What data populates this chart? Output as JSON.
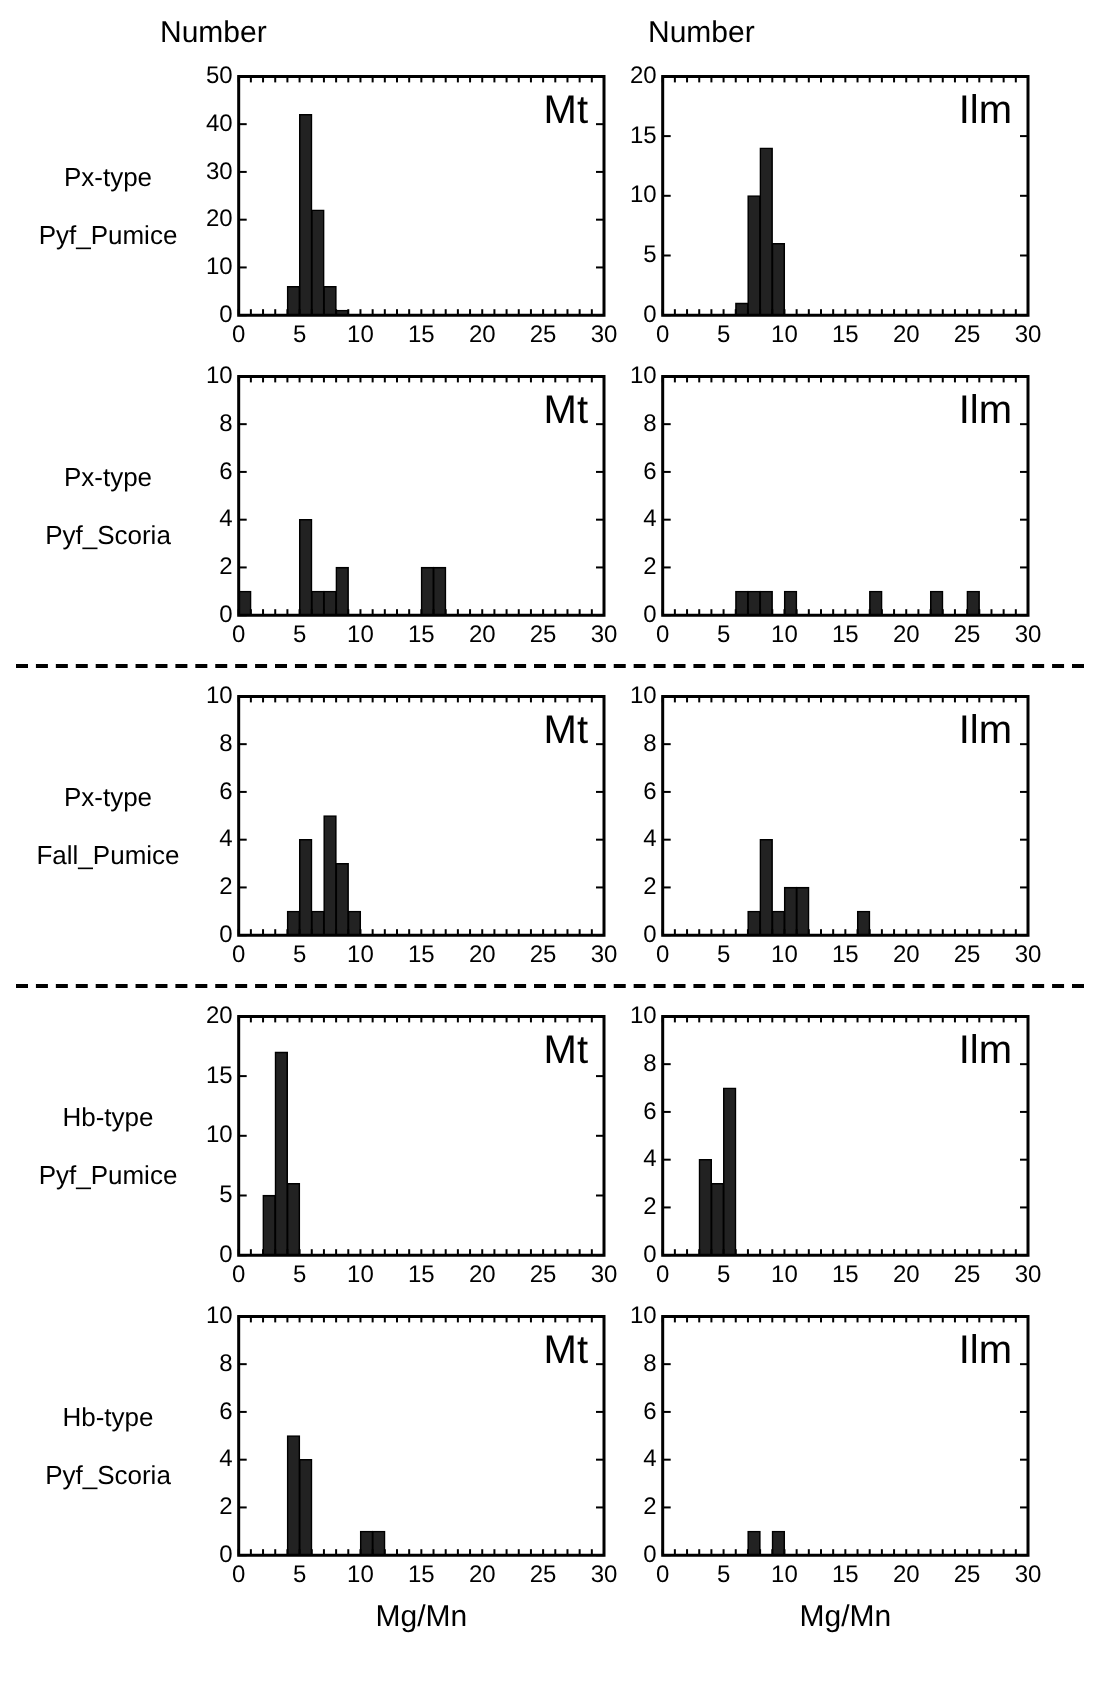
{
  "chart_data": [
    {
      "type": "histogram",
      "ylabel": "Number",
      "title": "Mt",
      "annotations": [
        "Px-type",
        "Pyf_Pumice"
      ],
      "bins": [
        0,
        1,
        2,
        3,
        4,
        5,
        6,
        7,
        8,
        9,
        10,
        11,
        12,
        13,
        14,
        15,
        16,
        17,
        18,
        19,
        20,
        21,
        22,
        23,
        24,
        25,
        26,
        27,
        28,
        29,
        30
      ],
      "values": [
        0,
        0,
        0,
        0,
        6,
        42,
        22,
        6,
        1,
        0,
        0,
        0,
        0,
        0,
        0,
        0,
        0,
        0,
        0,
        0,
        0,
        0,
        0,
        0,
        0,
        0,
        0,
        0,
        0,
        0
      ],
      "color": "#222222",
      "xlim": [
        0,
        30
      ],
      "xticks": [
        0,
        5,
        10,
        15,
        20,
        25,
        30
      ],
      "ylim": [
        0,
        50
      ],
      "yticks": [
        0,
        10,
        20,
        30,
        40,
        50
      ],
      "grid": false
    },
    {
      "type": "histogram",
      "ylabel": "Number",
      "title": "Ilm",
      "bins": [
        0,
        1,
        2,
        3,
        4,
        5,
        6,
        7,
        8,
        9,
        10,
        11,
        12,
        13,
        14,
        15,
        16,
        17,
        18,
        19,
        20,
        21,
        22,
        23,
        24,
        25,
        26,
        27,
        28,
        29,
        30
      ],
      "values": [
        0,
        0,
        0,
        0,
        0,
        0,
        1,
        10,
        14,
        6,
        0,
        0,
        0,
        0,
        0,
        0,
        0,
        0,
        0,
        0,
        0,
        0,
        0,
        0,
        0,
        0,
        0,
        0,
        0,
        0
      ],
      "color": "#222222",
      "xlim": [
        0,
        30
      ],
      "xticks": [
        0,
        5,
        10,
        15,
        20,
        25,
        30
      ],
      "ylim": [
        0,
        20
      ],
      "yticks": [
        0,
        5,
        10,
        15,
        20
      ],
      "grid": false
    },
    {
      "type": "histogram",
      "title": "Mt",
      "annotations": [
        "Px-type",
        "Pyf_Scoria"
      ],
      "bins": [
        0,
        1,
        2,
        3,
        4,
        5,
        6,
        7,
        8,
        9,
        10,
        11,
        12,
        13,
        14,
        15,
        16,
        17,
        18,
        19,
        20,
        21,
        22,
        23,
        24,
        25,
        26,
        27,
        28,
        29,
        30
      ],
      "values": [
        1,
        0,
        0,
        0,
        0,
        4,
        1,
        1,
        2,
        0,
        0,
        0,
        0,
        0,
        0,
        2,
        2,
        0,
        0,
        0,
        0,
        0,
        0,
        0,
        0,
        0,
        0,
        0,
        0,
        0
      ],
      "color": "#222222",
      "xlim": [
        0,
        30
      ],
      "xticks": [
        0,
        5,
        10,
        15,
        20,
        25,
        30
      ],
      "ylim": [
        0,
        10
      ],
      "yticks": [
        0,
        2,
        4,
        6,
        8,
        10
      ],
      "grid": false
    },
    {
      "type": "histogram",
      "title": "Ilm",
      "bins": [
        0,
        1,
        2,
        3,
        4,
        5,
        6,
        7,
        8,
        9,
        10,
        11,
        12,
        13,
        14,
        15,
        16,
        17,
        18,
        19,
        20,
        21,
        22,
        23,
        24,
        25,
        26,
        27,
        28,
        29,
        30
      ],
      "values": [
        0,
        0,
        0,
        0,
        0,
        0,
        1,
        1,
        1,
        0,
        1,
        0,
        0,
        0,
        0,
        0,
        0,
        1,
        0,
        0,
        0,
        0,
        1,
        0,
        0,
        1,
        0,
        0,
        0,
        0
      ],
      "color": "#222222",
      "xlim": [
        0,
        30
      ],
      "xticks": [
        0,
        5,
        10,
        15,
        20,
        25,
        30
      ],
      "ylim": [
        0,
        10
      ],
      "yticks": [
        0,
        2,
        4,
        6,
        8,
        10
      ],
      "grid": false
    },
    {
      "type": "histogram",
      "title": "Mt",
      "annotations": [
        "Px-type",
        "Fall_Pumice"
      ],
      "bins": [
        0,
        1,
        2,
        3,
        4,
        5,
        6,
        7,
        8,
        9,
        10,
        11,
        12,
        13,
        14,
        15,
        16,
        17,
        18,
        19,
        20,
        21,
        22,
        23,
        24,
        25,
        26,
        27,
        28,
        29,
        30
      ],
      "values": [
        0,
        0,
        0,
        0,
        1,
        4,
        1,
        5,
        3,
        1,
        0,
        0,
        0,
        0,
        0,
        0,
        0,
        0,
        0,
        0,
        0,
        0,
        0,
        0,
        0,
        0,
        0,
        0,
        0,
        0
      ],
      "color": "#222222",
      "xlim": [
        0,
        30
      ],
      "xticks": [
        0,
        5,
        10,
        15,
        20,
        25,
        30
      ],
      "ylim": [
        0,
        10
      ],
      "yticks": [
        0,
        2,
        4,
        6,
        8,
        10
      ],
      "grid": false
    },
    {
      "type": "histogram",
      "title": "Ilm",
      "bins": [
        0,
        1,
        2,
        3,
        4,
        5,
        6,
        7,
        8,
        9,
        10,
        11,
        12,
        13,
        14,
        15,
        16,
        17,
        18,
        19,
        20,
        21,
        22,
        23,
        24,
        25,
        26,
        27,
        28,
        29,
        30
      ],
      "values": [
        0,
        0,
        0,
        0,
        0,
        0,
        0,
        1,
        4,
        1,
        2,
        2,
        0,
        0,
        0,
        0,
        1,
        0,
        0,
        0,
        0,
        0,
        0,
        0,
        0,
        0,
        0,
        0,
        0,
        0
      ],
      "color": "#222222",
      "xlim": [
        0,
        30
      ],
      "xticks": [
        0,
        5,
        10,
        15,
        20,
        25,
        30
      ],
      "ylim": [
        0,
        10
      ],
      "yticks": [
        0,
        2,
        4,
        6,
        8,
        10
      ],
      "grid": false
    },
    {
      "type": "histogram",
      "title": "Mt",
      "annotations": [
        "Hb-type",
        "Pyf_Pumice"
      ],
      "bins": [
        0,
        1,
        2,
        3,
        4,
        5,
        6,
        7,
        8,
        9,
        10,
        11,
        12,
        13,
        14,
        15,
        16,
        17,
        18,
        19,
        20,
        21,
        22,
        23,
        24,
        25,
        26,
        27,
        28,
        29,
        30
      ],
      "values": [
        0,
        0,
        5,
        17,
        6,
        0,
        0,
        0,
        0,
        0,
        0,
        0,
        0,
        0,
        0,
        0,
        0,
        0,
        0,
        0,
        0,
        0,
        0,
        0,
        0,
        0,
        0,
        0,
        0,
        0
      ],
      "color": "#222222",
      "xlim": [
        0,
        30
      ],
      "xticks": [
        0,
        5,
        10,
        15,
        20,
        25,
        30
      ],
      "ylim": [
        0,
        20
      ],
      "yticks": [
        0,
        5,
        10,
        15,
        20
      ],
      "grid": false
    },
    {
      "type": "histogram",
      "title": "Ilm",
      "bins": [
        0,
        1,
        2,
        3,
        4,
        5,
        6,
        7,
        8,
        9,
        10,
        11,
        12,
        13,
        14,
        15,
        16,
        17,
        18,
        19,
        20,
        21,
        22,
        23,
        24,
        25,
        26,
        27,
        28,
        29,
        30
      ],
      "values": [
        0,
        0,
        0,
        4,
        3,
        7,
        0,
        0,
        0,
        0,
        0,
        0,
        0,
        0,
        0,
        0,
        0,
        0,
        0,
        0,
        0,
        0,
        0,
        0,
        0,
        0,
        0,
        0,
        0,
        0
      ],
      "color": "#222222",
      "xlim": [
        0,
        30
      ],
      "xticks": [
        0,
        5,
        10,
        15,
        20,
        25,
        30
      ],
      "ylim": [
        0,
        10
      ],
      "yticks": [
        0,
        2,
        4,
        6,
        8,
        10
      ],
      "grid": false
    },
    {
      "type": "histogram",
      "title": "Mt",
      "xlabel": "Mg/Mn",
      "annotations": [
        "Hb-type",
        "Pyf_Scoria"
      ],
      "bins": [
        0,
        1,
        2,
        3,
        4,
        5,
        6,
        7,
        8,
        9,
        10,
        11,
        12,
        13,
        14,
        15,
        16,
        17,
        18,
        19,
        20,
        21,
        22,
        23,
        24,
        25,
        26,
        27,
        28,
        29,
        30
      ],
      "values": [
        0,
        0,
        0,
        0,
        5,
        4,
        0,
        0,
        0,
        0,
        1,
        1,
        0,
        0,
        0,
        0,
        0,
        0,
        0,
        0,
        0,
        0,
        0,
        0,
        0,
        0,
        0,
        0,
        0,
        0
      ],
      "color": "#222222",
      "xlim": [
        0,
        30
      ],
      "xticks": [
        0,
        5,
        10,
        15,
        20,
        25,
        30
      ],
      "ylim": [
        0,
        10
      ],
      "yticks": [
        0,
        2,
        4,
        6,
        8,
        10
      ],
      "grid": false
    },
    {
      "type": "histogram",
      "title": "Ilm",
      "xlabel": "Mg/Mn",
      "bins": [
        0,
        1,
        2,
        3,
        4,
        5,
        6,
        7,
        8,
        9,
        10,
        11,
        12,
        13,
        14,
        15,
        16,
        17,
        18,
        19,
        20,
        21,
        22,
        23,
        24,
        25,
        26,
        27,
        28,
        29,
        30
      ],
      "values": [
        0,
        0,
        0,
        0,
        0,
        0,
        0,
        1,
        0,
        1,
        0,
        0,
        0,
        0,
        0,
        0,
        0,
        0,
        0,
        0,
        0,
        0,
        0,
        0,
        0,
        0,
        0,
        0,
        0,
        0
      ],
      "color": "#222222",
      "xlim": [
        0,
        30
      ],
      "xticks": [
        0,
        5,
        10,
        15,
        20,
        25,
        30
      ],
      "ylim": [
        0,
        10
      ],
      "yticks": [
        0,
        2,
        4,
        6,
        8,
        10
      ],
      "grid": false
    }
  ]
}
